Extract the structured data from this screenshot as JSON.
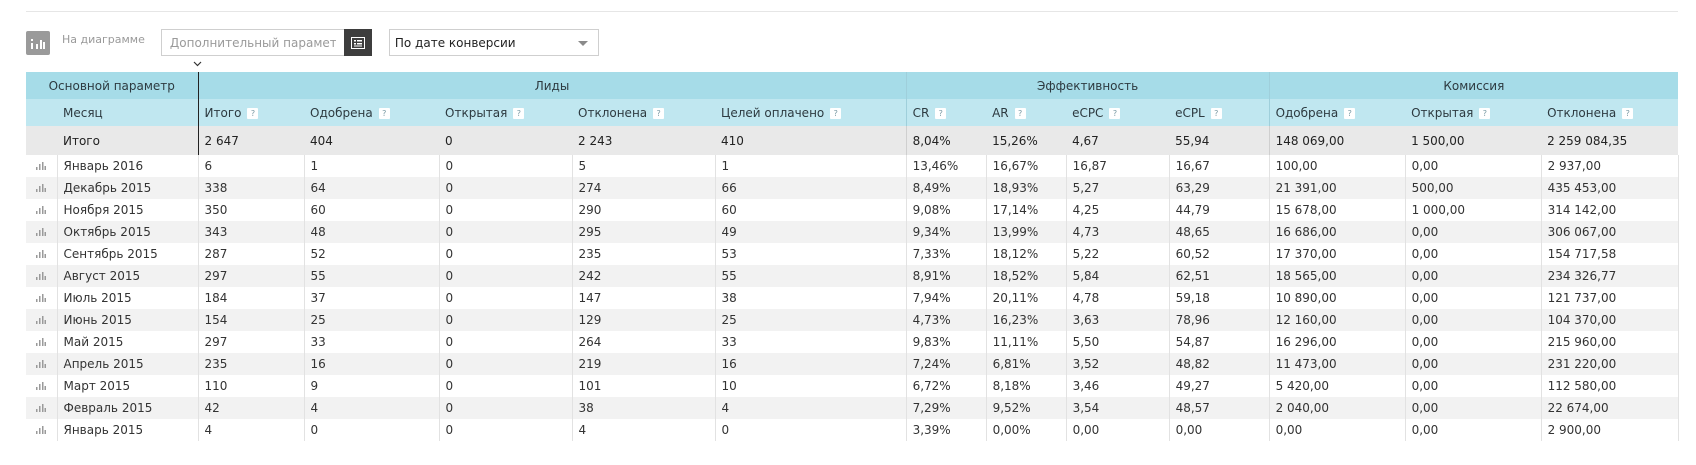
{
  "toolbar": {
    "chart_label": "На диаграмме",
    "param_placeholder": "Дополнительный параметр",
    "date_select_value": "По дате конверсии"
  },
  "table": {
    "groups": {
      "main": "Основной параметр",
      "leads": "Лиды",
      "efficiency": "Эффективность",
      "commission": "Комиссия"
    },
    "columns": {
      "month": "Месяц",
      "total": "Итого",
      "approved": "Одобрена",
      "open": "Открытая",
      "rejected": "Отклонена",
      "goals_paid": "Целей оплачено",
      "cr": "CR",
      "ar": "AR",
      "ecpc": "eCPC",
      "ecpl": "eCPL",
      "com_approved": "Одобрена",
      "com_open": "Открытая",
      "com_rejected": "Отклонена"
    },
    "help_mark": "?",
    "totals": {
      "label": "Итого",
      "values": [
        "2 647",
        "404",
        "0",
        "2 243",
        "410",
        "8,04%",
        "15,26%",
        "4,67",
        "55,94",
        "148 069,00",
        "1 500,00",
        "2 259 084,35"
      ]
    },
    "rows": [
      {
        "month": "Январь 2016",
        "values": [
          "6",
          "1",
          "0",
          "5",
          "1",
          "13,46%",
          "16,67%",
          "16,87",
          "16,67",
          "100,00",
          "0,00",
          "2 937,00"
        ]
      },
      {
        "month": "Декабрь 2015",
        "values": [
          "338",
          "64",
          "0",
          "274",
          "66",
          "8,49%",
          "18,93%",
          "5,27",
          "63,29",
          "21 391,00",
          "500,00",
          "435 453,00"
        ]
      },
      {
        "month": "Ноября 2015",
        "values": [
          "350",
          "60",
          "0",
          "290",
          "60",
          "9,08%",
          "17,14%",
          "4,25",
          "44,79",
          "15 678,00",
          "1 000,00",
          "314 142,00"
        ]
      },
      {
        "month": "Октябрь 2015",
        "values": [
          "343",
          "48",
          "0",
          "295",
          "49",
          "9,34%",
          "13,99%",
          "4,73",
          "48,65",
          "16 686,00",
          "0,00",
          "306 067,00"
        ]
      },
      {
        "month": "Сентябрь 2015",
        "values": [
          "287",
          "52",
          "0",
          "235",
          "53",
          "7,33%",
          "18,12%",
          "5,22",
          "60,52",
          "17 370,00",
          "0,00",
          "154 717,58"
        ]
      },
      {
        "month": "Август 2015",
        "values": [
          "297",
          "55",
          "0",
          "242",
          "55",
          "8,91%",
          "18,52%",
          "5,84",
          "62,51",
          "18 565,00",
          "0,00",
          "234 326,77"
        ]
      },
      {
        "month": "Июль 2015",
        "values": [
          "184",
          "37",
          "0",
          "147",
          "38",
          "7,94%",
          "20,11%",
          "4,78",
          "59,18",
          "10 890,00",
          "0,00",
          "121 737,00"
        ]
      },
      {
        "month": "Июнь 2015",
        "values": [
          "154",
          "25",
          "0",
          "129",
          "25",
          "4,73%",
          "16,23%",
          "3,63",
          "78,96",
          "12 160,00",
          "0,00",
          "104 370,00"
        ]
      },
      {
        "month": "Май 2015",
        "values": [
          "297",
          "33",
          "0",
          "264",
          "33",
          "9,83%",
          "11,11%",
          "5,50",
          "54,87",
          "16 296,00",
          "0,00",
          "215 960,00"
        ]
      },
      {
        "month": "Апрель 2015",
        "values": [
          "235",
          "16",
          "0",
          "219",
          "16",
          "7,24%",
          "6,81%",
          "3,52",
          "48,82",
          "11 473,00",
          "0,00",
          "231 220,00"
        ]
      },
      {
        "month": "Март 2015",
        "values": [
          "110",
          "9",
          "0",
          "101",
          "10",
          "6,72%",
          "8,18%",
          "3,46",
          "49,27",
          "5 420,00",
          "0,00",
          "112 580,00"
        ]
      },
      {
        "month": "Февраль 2015",
        "values": [
          "42",
          "4",
          "0",
          "38",
          "4",
          "7,29%",
          "9,52%",
          "3,54",
          "48,57",
          "2 040,00",
          "0,00",
          "22 674,00"
        ]
      },
      {
        "month": "Январь 2015",
        "values": [
          "4",
          "0",
          "0",
          "4",
          "0",
          "3,39%",
          "0,00%",
          "0,00",
          "0,00",
          "0,00",
          "0,00",
          "2 900,00"
        ]
      }
    ]
  }
}
